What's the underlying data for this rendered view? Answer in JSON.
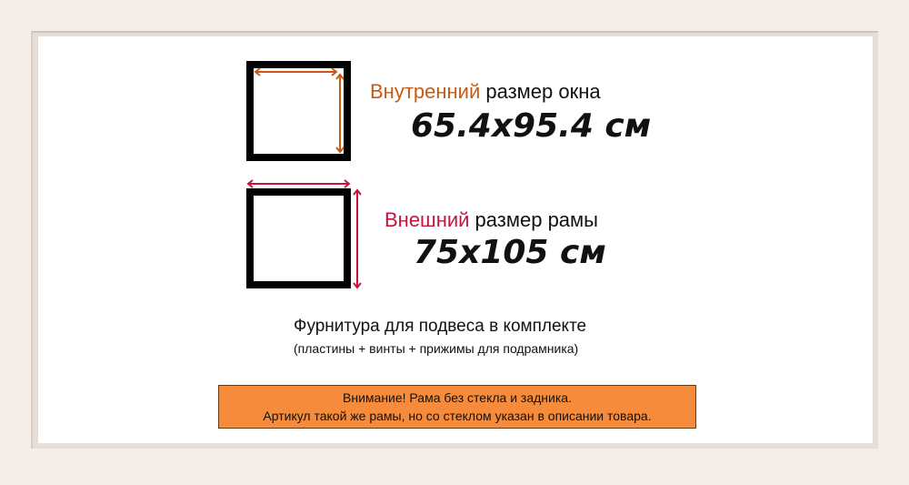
{
  "inner_size": {
    "highlight": "Внутренний",
    "rest": " размер окна",
    "value": "65.4x95.4 см",
    "color": "#c85a14"
  },
  "outer_size": {
    "highlight": "Внешний",
    "rest": " размер рамы",
    "value": "75x105 см",
    "color": "#c8143c"
  },
  "hardware": {
    "title": "Фурнитура для подвеса в комплекте",
    "subtitle": "(пластины + винты + прижимы для подрамника)"
  },
  "notice": {
    "line1": "Внимание! Рама без стекла и задника.",
    "line2": "Артикул такой же рамы, но со стеклом указан в описании товара.",
    "background": "#f68c3b"
  }
}
